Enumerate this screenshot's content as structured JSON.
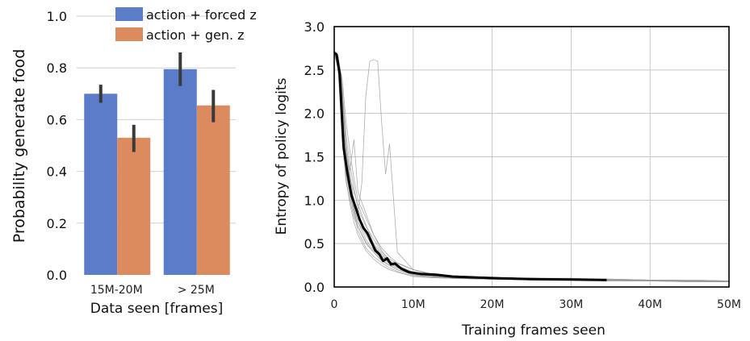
{
  "chart_data": [
    {
      "type": "bar",
      "title": "",
      "xlabel": "Data seen [frames]",
      "ylabel": "Probability generate food",
      "ylim": [
        0,
        1.0
      ],
      "yticks": [
        "0.0",
        "0.2",
        "0.4",
        "0.6",
        "0.8",
        "1.0"
      ],
      "grid": true,
      "legend_position": "top-right",
      "categories": [
        "15M-20M",
        "> 25M"
      ],
      "series": [
        {
          "name": "action + forced z",
          "color": "#5a7cc9",
          "values": [
            0.7,
            0.795
          ],
          "err_low": [
            0.665,
            0.73
          ],
          "err_high": [
            0.735,
            0.86
          ]
        },
        {
          "name": "action + gen. z",
          "color": "#db8b5e",
          "values": [
            0.53,
            0.655
          ],
          "err_low": [
            0.475,
            0.59
          ],
          "err_high": [
            0.58,
            0.715
          ]
        }
      ]
    },
    {
      "type": "line",
      "title": "",
      "xlabel": "Training frames seen",
      "ylabel": "Entropy of policy logits",
      "xlim": [
        0,
        50000000
      ],
      "ylim": [
        0,
        3.0
      ],
      "xticks": [
        "0",
        "10M",
        "20M",
        "30M",
        "40M",
        "50M"
      ],
      "yticks": [
        "0.0",
        "0.5",
        "1.0",
        "1.5",
        "2.0",
        "2.5",
        "3.0"
      ],
      "grid": true,
      "mean_series": {
        "color": "#000000",
        "x": [
          0,
          300000,
          700000,
          1200000,
          1700000,
          2200000,
          2700000,
          3200000,
          3700000,
          4200000,
          4700000,
          5200000,
          5700000,
          6200000,
          6700000,
          7200000,
          7700000,
          8500000,
          9500000,
          11000000,
          13000000,
          15000000,
          18000000,
          21000000,
          25000000,
          30000000,
          34500000
        ],
        "y": [
          2.7,
          2.68,
          2.45,
          1.6,
          1.3,
          1.05,
          0.92,
          0.78,
          0.68,
          0.62,
          0.52,
          0.42,
          0.38,
          0.3,
          0.33,
          0.26,
          0.27,
          0.21,
          0.17,
          0.15,
          0.14,
          0.12,
          0.11,
          0.1,
          0.09,
          0.085,
          0.08
        ]
      },
      "runs": [
        {
          "x": [
            0,
            500000,
            1000000,
            1500000,
            2000000,
            2500000,
            3000000,
            3500000,
            4000000,
            4500000,
            5000000,
            5500000,
            6000000,
            6500000,
            7000000,
            8000000,
            10000000,
            12000000,
            15000000,
            20000000,
            25000000,
            30000000,
            35000000,
            40000000,
            45000000,
            50000000
          ],
          "y": [
            2.7,
            2.6,
            2.1,
            1.4,
            1.1,
            0.95,
            0.85,
            1.2,
            2.2,
            2.6,
            2.62,
            2.6,
            1.9,
            1.3,
            1.65,
            0.4,
            0.2,
            0.15,
            0.12,
            0.11,
            0.1,
            0.09,
            0.09,
            0.08,
            0.07,
            0.07
          ]
        },
        {
          "x": [
            0,
            500000,
            1000000,
            1500000,
            2000000,
            2500000,
            3000000,
            4000000,
            5000000,
            6000000,
            7000000,
            8000000,
            10000000,
            12000000,
            15000000,
            20000000,
            25000000,
            30000000,
            35000000,
            40000000,
            45000000,
            50000000
          ],
          "y": [
            2.7,
            2.65,
            2.0,
            1.5,
            1.35,
            1.7,
            1.1,
            0.85,
            0.6,
            0.42,
            0.3,
            0.25,
            0.17,
            0.13,
            0.11,
            0.1,
            0.1,
            0.09,
            0.08,
            0.08,
            0.07,
            0.07
          ]
        },
        {
          "x": [
            0,
            500000,
            1000000,
            1500000,
            2000000,
            2500000,
            3000000,
            4000000,
            5000000,
            6000000,
            7000000,
            8000000,
            10000000,
            12000000,
            15000000,
            20000000,
            25000000,
            30000000,
            35000000,
            40000000,
            45000000,
            50000000
          ],
          "y": [
            2.72,
            2.5,
            1.7,
            1.2,
            1.0,
            0.8,
            0.7,
            0.5,
            0.4,
            0.3,
            0.25,
            0.2,
            0.14,
            0.12,
            0.1,
            0.09,
            0.09,
            0.08,
            0.08,
            0.07,
            0.06,
            0.06
          ]
        },
        {
          "x": [
            0,
            500000,
            1000000,
            1500000,
            2000000,
            2500000,
            3000000,
            4000000,
            5000000,
            6000000,
            7000000,
            8000000,
            10000000,
            12000000,
            15000000,
            20000000,
            25000000,
            30000000,
            35000000,
            40000000,
            45000000,
            50000000
          ],
          "y": [
            2.68,
            2.55,
            2.2,
            1.6,
            1.2,
            0.9,
            0.75,
            0.6,
            0.45,
            0.35,
            0.28,
            0.22,
            0.16,
            0.14,
            0.12,
            0.11,
            0.1,
            0.09,
            0.08,
            0.08,
            0.07,
            0.07
          ]
        },
        {
          "x": [
            0,
            500000,
            1000000,
            1500000,
            2000000,
            2500000,
            3000000,
            4000000,
            5000000,
            6000000,
            7000000,
            8000000,
            10000000,
            12000000,
            15000000,
            20000000,
            25000000,
            30000000,
            35000000,
            40000000,
            45000000,
            50000000
          ],
          "y": [
            2.7,
            2.62,
            2.3,
            1.75,
            1.4,
            1.15,
            0.9,
            0.7,
            0.55,
            0.4,
            0.32,
            0.27,
            0.2,
            0.15,
            0.13,
            0.11,
            0.1,
            0.09,
            0.09,
            0.08,
            0.08,
            0.07
          ]
        },
        {
          "x": [
            0,
            500000,
            1000000,
            1500000,
            2000000,
            2500000,
            3000000,
            4000000,
            5000000,
            6000000,
            7000000,
            8000000,
            10000000,
            12000000,
            15000000,
            20000000,
            25000000,
            30000000,
            35000000,
            40000000,
            45000000,
            50000000
          ],
          "y": [
            2.69,
            2.58,
            1.9,
            1.3,
            1.05,
            0.85,
            0.65,
            0.45,
            0.35,
            0.28,
            0.22,
            0.18,
            0.13,
            0.11,
            0.1,
            0.09,
            0.08,
            0.08,
            0.07,
            0.07,
            0.06,
            0.06
          ]
        },
        {
          "x": [
            0,
            500000,
            1000000,
            1500000,
            2000000,
            2500000,
            3000000,
            4000000,
            5000000,
            6000000,
            7000000,
            8000000,
            10000000,
            12000000,
            15000000,
            20000000,
            25000000,
            30000000,
            35000000,
            40000000,
            45000000,
            50000000
          ],
          "y": [
            2.71,
            2.63,
            2.4,
            1.9,
            1.55,
            1.25,
            1.0,
            0.8,
            0.6,
            0.45,
            0.35,
            0.28,
            0.2,
            0.16,
            0.13,
            0.11,
            0.1,
            0.1,
            0.09,
            0.08,
            0.08,
            0.07
          ]
        },
        {
          "x": [
            0,
            500000,
            1000000,
            1500000,
            2000000,
            2500000,
            3000000,
            4000000,
            5000000,
            6000000,
            7000000,
            8000000,
            10000000,
            12000000,
            15000000,
            20000000,
            25000000,
            30000000,
            35000000,
            40000000,
            45000000,
            50000000
          ],
          "y": [
            2.7,
            2.5,
            1.8,
            1.25,
            0.95,
            0.75,
            0.6,
            0.42,
            0.32,
            0.25,
            0.2,
            0.17,
            0.12,
            0.11,
            0.1,
            0.09,
            0.09,
            0.08,
            0.07,
            0.07,
            0.07,
            0.06
          ]
        },
        {
          "x": [
            0,
            500000,
            1000000,
            1500000,
            2000000,
            2500000,
            3000000,
            4000000,
            5000000,
            6000000,
            7000000,
            8000000,
            10000000,
            12000000,
            15000000,
            20000000,
            25000000,
            30000000,
            35000000,
            40000000,
            45000000,
            50000000
          ],
          "y": [
            2.68,
            2.6,
            2.25,
            1.65,
            1.3,
            1.0,
            0.82,
            0.62,
            0.48,
            0.36,
            0.3,
            0.24,
            0.17,
            0.13,
            0.11,
            0.1,
            0.09,
            0.09,
            0.08,
            0.08,
            0.07,
            0.07
          ]
        },
        {
          "x": [
            0,
            500000,
            1000000,
            1500000,
            2000000,
            2500000,
            3000000,
            4000000,
            5000000,
            6000000,
            7000000,
            8000000,
            10000000,
            12000000,
            15000000,
            20000000,
            25000000,
            30000000,
            35000000,
            40000000,
            45000000,
            50000000
          ],
          "y": [
            2.7,
            2.66,
            2.35,
            1.55,
            1.25,
            1.1,
            0.95,
            0.72,
            0.5,
            0.38,
            0.3,
            0.23,
            0.15,
            0.12,
            0.11,
            0.1,
            0.09,
            0.08,
            0.08,
            0.07,
            0.07,
            0.06
          ]
        },
        {
          "x": [
            0,
            500000,
            1000000,
            1500000,
            2000000,
            2500000,
            3000000,
            4000000,
            5000000,
            6000000,
            7000000,
            8000000,
            10000000,
            12000000,
            15000000,
            20000000,
            25000000,
            30000000,
            35000000,
            40000000,
            45000000,
            50000000
          ],
          "y": [
            2.72,
            2.6,
            2.1,
            1.45,
            1.15,
            0.92,
            0.75,
            0.55,
            0.42,
            0.33,
            0.27,
            0.22,
            0.16,
            0.13,
            0.12,
            0.1,
            0.1,
            0.09,
            0.08,
            0.08,
            0.07,
            0.07
          ]
        },
        {
          "x": [
            0,
            500000,
            1000000,
            1500000,
            2000000,
            2500000,
            3000000,
            4000000,
            5000000,
            6000000,
            7000000,
            8000000,
            10000000,
            12000000,
            15000000,
            20000000,
            25000000,
            30000000,
            35000000,
            40000000,
            45000000,
            50000000
          ],
          "y": [
            2.69,
            2.55,
            1.95,
            1.35,
            1.08,
            0.88,
            0.7,
            0.52,
            0.4,
            0.31,
            0.25,
            0.2,
            0.14,
            0.12,
            0.1,
            0.09,
            0.09,
            0.08,
            0.08,
            0.07,
            0.06,
            0.06
          ]
        }
      ]
    }
  ]
}
